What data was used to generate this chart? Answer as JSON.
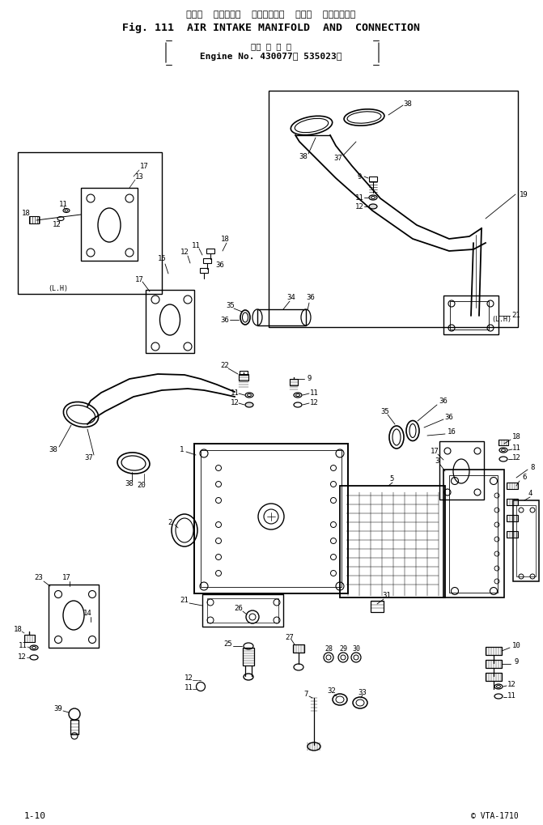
{
  "title_japanese": "エアー  インテーク  マニホールド  および  コネクション",
  "title_english": "Fig. 111  AIR INTAKE MANIFOLD  AND  CONNECTION",
  "subtitle_line1": "（適 用 号 機",
  "subtitle_line2": "Engine No. 430077～ 535023）",
  "page_number": "1-10",
  "copyright": "© VTA-1710",
  "bg": "#ffffff",
  "lc": "#000000"
}
